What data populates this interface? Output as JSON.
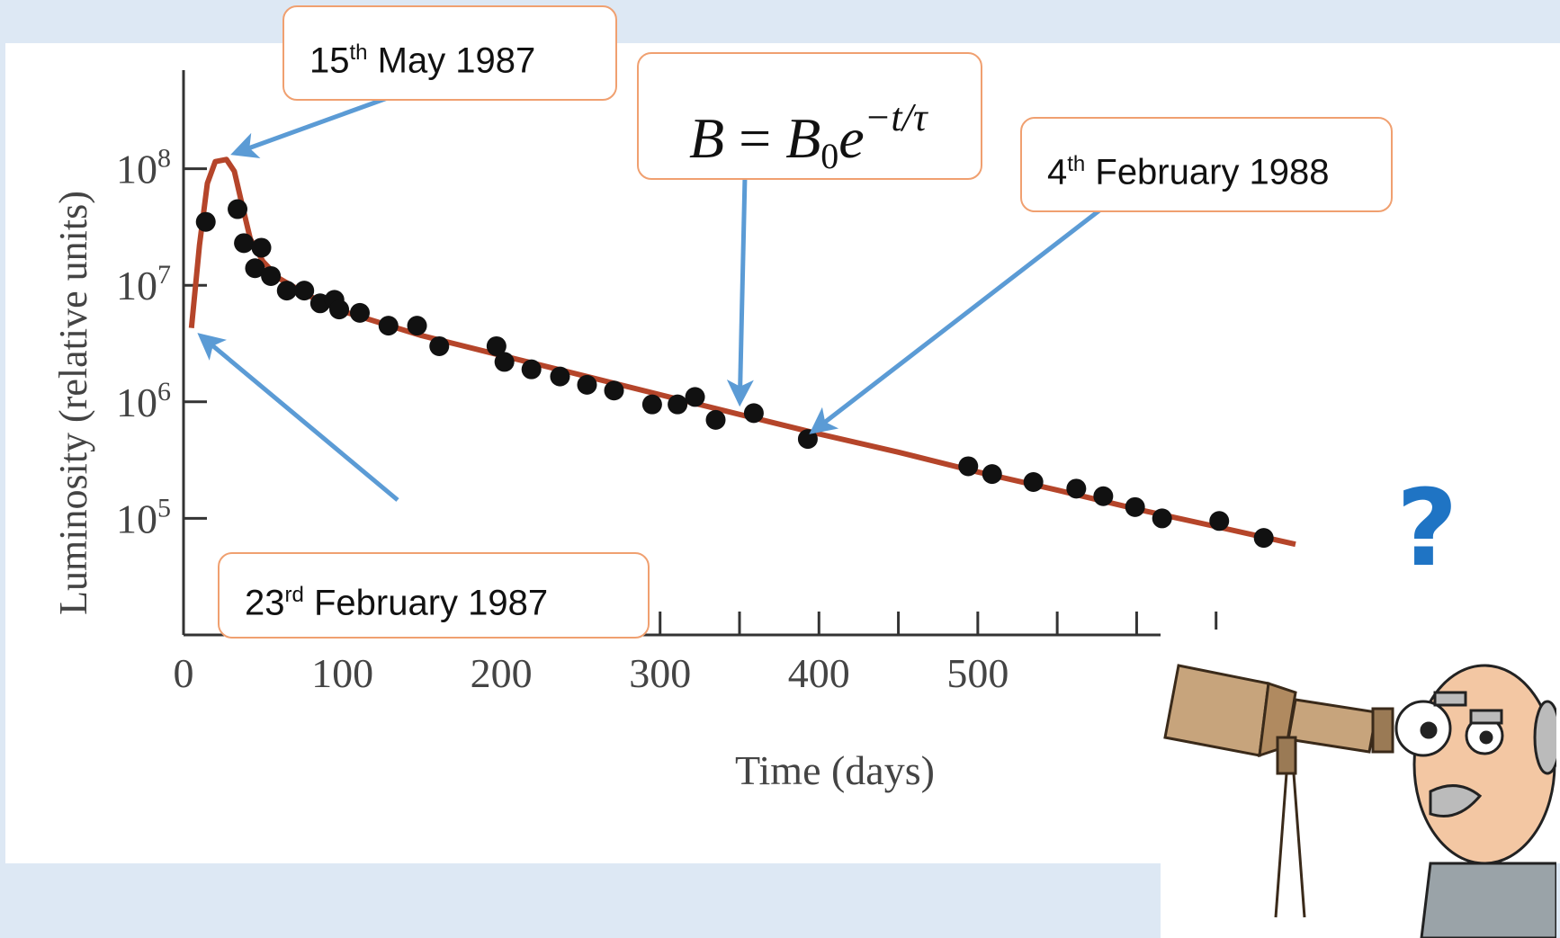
{
  "chart_data": {
    "type": "scatter",
    "title": "",
    "xlabel": "Time (days)",
    "ylabel": "Luminosity (relative units)",
    "xlim": [
      0,
      700
    ],
    "ylim_log10": [
      4.0,
      9.0
    ],
    "y_scale": "log",
    "x_ticks": [
      0,
      100,
      200,
      300,
      400,
      500
    ],
    "x_tick_labels": [
      "0",
      "100",
      "200",
      "300",
      "400",
      "500"
    ],
    "y_ticks": [
      100000000,
      10000000,
      1000000,
      100000
    ],
    "y_tick_labels": [
      {
        "base": "10",
        "exp": "8"
      },
      {
        "base": "10",
        "exp": "7"
      },
      {
        "base": "10",
        "exp": "6"
      },
      {
        "base": "10",
        "exp": "5"
      }
    ],
    "grid": false,
    "series": [
      {
        "kind": "points",
        "color": "#111111",
        "points": [
          [
            14,
            35000000
          ],
          [
            34,
            45000000
          ],
          [
            38,
            23000000
          ],
          [
            49,
            21000000
          ],
          [
            45,
            14000000
          ],
          [
            55,
            12000000
          ],
          [
            65,
            9000000
          ],
          [
            76,
            9000000
          ],
          [
            86,
            7000000
          ],
          [
            95,
            7500000
          ],
          [
            98,
            6200000
          ],
          [
            111,
            5800000
          ],
          [
            129,
            4500000
          ],
          [
            147,
            4500000
          ],
          [
            161,
            3000000
          ],
          [
            197,
            3000000
          ],
          [
            202,
            2200000
          ],
          [
            219,
            1900000
          ],
          [
            237,
            1650000
          ],
          [
            254,
            1400000
          ],
          [
            271,
            1250000
          ],
          [
            295,
            950000
          ],
          [
            311,
            950000
          ],
          [
            322,
            1100000
          ],
          [
            335,
            700000
          ],
          [
            359,
            800000
          ],
          [
            393,
            480000
          ],
          [
            494,
            280000
          ],
          [
            509,
            240000
          ],
          [
            535,
            205000
          ],
          [
            562,
            180000
          ],
          [
            579,
            155000
          ],
          [
            599,
            125000
          ],
          [
            616,
            100000
          ],
          [
            652,
            95000
          ],
          [
            680,
            68000
          ]
        ]
      },
      {
        "kind": "curve",
        "color": "#b5452a",
        "points": [
          [
            5,
            4300000
          ],
          [
            10,
            22000000
          ],
          [
            15,
            75000000
          ],
          [
            20,
            115000000
          ],
          [
            27,
            120000000
          ],
          [
            32,
            95000000
          ],
          [
            36,
            55000000
          ],
          [
            42,
            25000000
          ],
          [
            50,
            16000000
          ],
          [
            60,
            11500000
          ],
          [
            80,
            8000000
          ],
          [
            100,
            6000000
          ],
          [
            150,
            3700000
          ],
          [
            200,
            2500000
          ],
          [
            250,
            1700000
          ],
          [
            300,
            1150000
          ],
          [
            350,
            780000
          ],
          [
            400,
            530000
          ],
          [
            450,
            370000
          ],
          [
            500,
            250000
          ],
          [
            550,
            175000
          ],
          [
            600,
            120000
          ],
          [
            650,
            85000
          ],
          [
            700,
            60000
          ]
        ]
      }
    ],
    "annotations": [
      {
        "id": "peak",
        "pre": "15",
        "sup": "th",
        "post": " May 1987",
        "x": 25,
        "y": 125000000
      },
      {
        "id": "start",
        "pre": "23",
        "sup": "rd",
        "post": " February 1987",
        "x": 5,
        "y": 4300000
      },
      {
        "id": "fit",
        "x": 350,
        "y": 780000
      },
      {
        "id": "date3",
        "pre": "4",
        "sup": "th",
        "post": " February 1988",
        "x": 390,
        "y": 480000
      }
    ],
    "equation": {
      "lhs": "B",
      "equals": " = ",
      "base": "B",
      "sub": "0",
      "e": "e",
      "exp": "−t/τ"
    },
    "arrow_color": "#5b9bd5",
    "callout_border": "#f0a070"
  },
  "overlay": {
    "question_mark": "?",
    "question_color": "#1f74c4",
    "illustration": "cartoon-astronomer-with-telescope"
  }
}
